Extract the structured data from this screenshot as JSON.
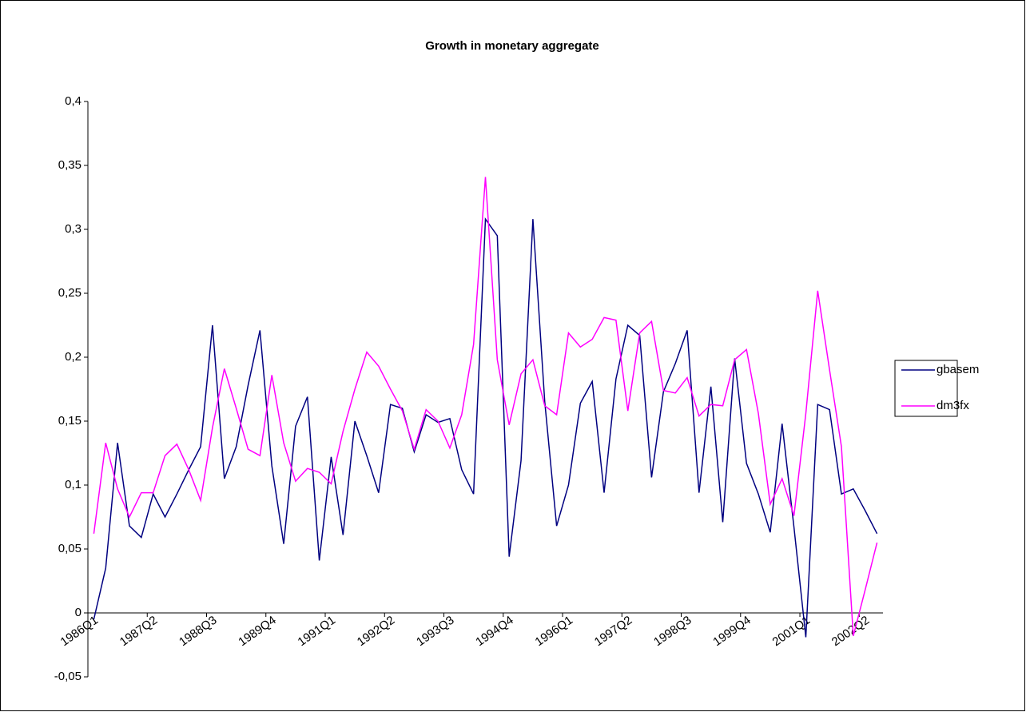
{
  "chart_data": {
    "type": "line",
    "title": "Growth in monetary aggregate",
    "categories": [
      "1986Q1",
      null,
      null,
      null,
      null,
      "1987Q2",
      null,
      null,
      null,
      null,
      "1988Q3",
      null,
      null,
      null,
      null,
      "1989Q4",
      null,
      null,
      null,
      null,
      "1991Q1",
      null,
      null,
      null,
      null,
      "1992Q2",
      null,
      null,
      null,
      null,
      "1993Q3",
      null,
      null,
      null,
      null,
      "1994Q4",
      null,
      null,
      null,
      null,
      "1996Q1",
      null,
      null,
      null,
      null,
      "1997Q2",
      null,
      null,
      null,
      null,
      "1998Q3",
      null,
      null,
      null,
      null,
      "1999Q4",
      null,
      null,
      null,
      null,
      "2001Q1",
      null,
      null,
      null,
      null,
      "2002Q2",
      null
    ],
    "series": [
      {
        "name": "gbasem",
        "color": "#000080",
        "values": [
          -0.005,
          0.035,
          0.133,
          0.068,
          0.059,
          0.093,
          0.075,
          0.093,
          0.112,
          0.13,
          0.225,
          0.105,
          0.13,
          0.178,
          0.221,
          0.115,
          0.054,
          0.146,
          0.169,
          0.041,
          0.122,
          0.061,
          0.15,
          0.123,
          0.094,
          0.163,
          0.16,
          0.126,
          0.155,
          0.149,
          0.152,
          0.112,
          0.093,
          0.308,
          0.295,
          0.044,
          0.119,
          0.308,
          0.165,
          0.068,
          0.1,
          0.164,
          0.181,
          0.094,
          0.183,
          0.225,
          0.217,
          0.106,
          0.173,
          0.195,
          0.221,
          0.094,
          0.177,
          0.071,
          0.199,
          0.117,
          0.093,
          0.063,
          0.148,
          0.067,
          -0.019,
          0.163,
          0.159,
          0.093,
          0.097,
          0.08,
          0.062
        ]
      },
      {
        "name": "dm3fx",
        "color": "#ff00ff",
        "values": [
          0.062,
          0.133,
          0.097,
          0.075,
          0.094,
          0.094,
          0.123,
          0.132,
          0.112,
          0.088,
          0.145,
          0.191,
          0.16,
          0.128,
          0.123,
          0.186,
          0.133,
          0.103,
          0.113,
          0.11,
          0.101,
          0.142,
          0.175,
          0.204,
          0.193,
          0.175,
          0.158,
          0.128,
          0.159,
          0.15,
          0.129,
          0.155,
          0.21,
          0.341,
          0.198,
          0.147,
          0.187,
          0.198,
          0.162,
          0.155,
          0.219,
          0.208,
          0.214,
          0.231,
          0.229,
          0.158,
          0.219,
          0.228,
          0.174,
          0.172,
          0.184,
          0.154,
          0.163,
          0.162,
          0.198,
          0.206,
          0.156,
          0.085,
          0.105,
          0.076,
          0.156,
          0.252,
          0.19,
          0.13,
          -0.018,
          0.018,
          0.055
        ]
      }
    ],
    "ylim": [
      -0.05,
      0.4
    ],
    "yticks": [
      {
        "value": -0.05,
        "label": "-0,05"
      },
      0,
      {
        "value": 0.05,
        "label": "0,05"
      },
      {
        "value": 0.1,
        "label": "0,1"
      },
      {
        "value": 0.15,
        "label": "0,15"
      },
      {
        "value": 0.2,
        "label": "0,2"
      },
      {
        "value": 0.25,
        "label": "0,25"
      },
      {
        "value": 0.3,
        "label": "0,3"
      },
      {
        "value": 0.35,
        "label": "0,35"
      },
      {
        "value": 0.4,
        "label": "0,4"
      }
    ],
    "grid": false,
    "legend": "right"
  }
}
